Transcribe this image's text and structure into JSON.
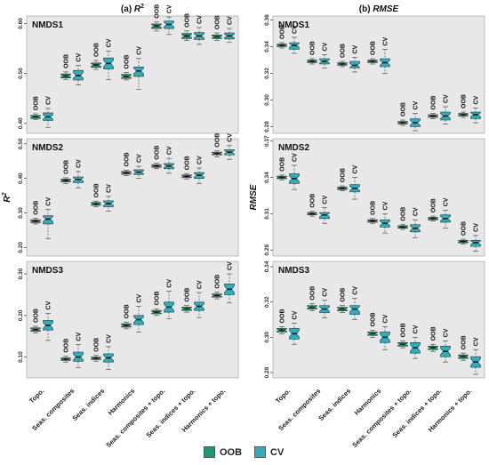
{
  "colors": {
    "oob": "#1a9a74",
    "cv": "#2ab0c0",
    "median": "#111111",
    "panel": "#e8e8e8",
    "whisker": "#555555"
  },
  "legend": {
    "oob": "OOB",
    "cv": "CV"
  },
  "chart_data": {
    "type": "box",
    "group_labels": [
      "OOB",
      "CV"
    ],
    "columns": [
      {
        "title_prefix": "(a)",
        "title_metric": "R",
        "title_sup": "2",
        "ylabel_main": "R",
        "ylabel_sup": "2"
      },
      {
        "title_prefix": "(b)",
        "title_metric": "RMSE",
        "title_sup": "",
        "ylabel_main": "RMSE",
        "ylabel_sup": ""
      }
    ],
    "categories": [
      "Topo.",
      "Seas. composites",
      "Seas. indices",
      "Harmonics",
      "Seas. composites + topo.",
      "Seas. indices + topo.",
      "Harmonics + topo."
    ],
    "panels": [
      {
        "id": "r2-nmds1",
        "col": 0,
        "row": 0,
        "label": "NMDS1",
        "ylim": [
          0.38,
          0.615
        ],
        "ticks": [
          0.4,
          0.5,
          0.6
        ],
        "tick_labels": [
          "0.40",
          "0.50",
          "0.60"
        ],
        "oob": [
          [
            0.408,
            0.41,
            0.413,
            0.416,
            0.419
          ],
          [
            0.488,
            0.491,
            0.495,
            0.499,
            0.503
          ],
          [
            0.508,
            0.512,
            0.517,
            0.521,
            0.526
          ],
          [
            0.487,
            0.49,
            0.494,
            0.498,
            0.502
          ],
          [
            0.585,
            0.59,
            0.595,
            0.599,
            0.603
          ],
          [
            0.566,
            0.57,
            0.575,
            0.58,
            0.585
          ],
          [
            0.566,
            0.57,
            0.573,
            0.577,
            0.581
          ]
        ],
        "cv": [
          [
            0.392,
            0.406,
            0.413,
            0.421,
            0.43
          ],
          [
            0.477,
            0.487,
            0.496,
            0.506,
            0.516
          ],
          [
            0.488,
            0.509,
            0.52,
            0.531,
            0.545
          ],
          [
            0.468,
            0.494,
            0.505,
            0.513,
            0.53
          ],
          [
            0.578,
            0.59,
            0.598,
            0.605,
            0.613
          ],
          [
            0.558,
            0.568,
            0.575,
            0.582,
            0.592
          ],
          [
            0.562,
            0.569,
            0.575,
            0.581,
            0.59
          ]
        ]
      },
      {
        "id": "r2-nmds2",
        "col": 0,
        "row": 1,
        "label": "NMDS2",
        "ylim": [
          0.175,
          0.515
        ],
        "ticks": [
          0.2,
          0.3,
          0.4,
          0.5
        ],
        "tick_labels": [
          "0.20",
          "0.30",
          "0.40",
          "0.50"
        ],
        "oob": [
          [
            0.268,
            0.272,
            0.276,
            0.28,
            0.284
          ],
          [
            0.385,
            0.39,
            0.394,
            0.398,
            0.402
          ],
          [
            0.318,
            0.322,
            0.326,
            0.33,
            0.334
          ],
          [
            0.408,
            0.412,
            0.416,
            0.42,
            0.424
          ],
          [
            0.428,
            0.432,
            0.436,
            0.44,
            0.444
          ],
          [
            0.398,
            0.402,
            0.406,
            0.41,
            0.414
          ],
          [
            0.462,
            0.468,
            0.472,
            0.476,
            0.48
          ]
        ],
        "cv": [
          [
            0.225,
            0.268,
            0.282,
            0.292,
            0.31
          ],
          [
            0.372,
            0.388,
            0.397,
            0.404,
            0.42
          ],
          [
            0.305,
            0.318,
            0.327,
            0.335,
            0.348
          ],
          [
            0.4,
            0.411,
            0.418,
            0.425,
            0.435
          ],
          [
            0.415,
            0.428,
            0.436,
            0.443,
            0.458
          ],
          [
            0.385,
            0.4,
            0.409,
            0.417,
            0.43
          ],
          [
            0.455,
            0.468,
            0.476,
            0.483,
            0.495
          ]
        ]
      },
      {
        "id": "r2-nmds3",
        "col": 0,
        "row": 2,
        "label": "NMDS3",
        "ylim": [
          0.05,
          0.33
        ],
        "ticks": [
          0.1,
          0.2,
          0.3
        ],
        "tick_labels": [
          "0.10",
          "0.20",
          "0.30"
        ],
        "oob": [
          [
            0.158,
            0.162,
            0.166,
            0.17,
            0.174
          ],
          [
            0.088,
            0.092,
            0.095,
            0.098,
            0.102
          ],
          [
            0.09,
            0.094,
            0.097,
            0.1,
            0.104
          ],
          [
            0.168,
            0.172,
            0.176,
            0.18,
            0.184
          ],
          [
            0.2,
            0.204,
            0.208,
            0.212,
            0.216
          ],
          [
            0.208,
            0.212,
            0.216,
            0.22,
            0.224
          ],
          [
            0.24,
            0.244,
            0.248,
            0.252,
            0.256
          ]
        ],
        "cv": [
          [
            0.14,
            0.165,
            0.176,
            0.188,
            0.205
          ],
          [
            0.075,
            0.09,
            0.1,
            0.112,
            0.13
          ],
          [
            0.07,
            0.088,
            0.098,
            0.108,
            0.125
          ],
          [
            0.16,
            0.178,
            0.19,
            0.2,
            0.222
          ],
          [
            0.192,
            0.208,
            0.22,
            0.232,
            0.258
          ],
          [
            0.195,
            0.212,
            0.222,
            0.232,
            0.255
          ],
          [
            0.23,
            0.25,
            0.263,
            0.276,
            0.3
          ]
        ]
      },
      {
        "id": "rmse-nmds1",
        "col": 1,
        "row": 0,
        "label": "NMDS1",
        "ylim": [
          0.275,
          0.363
        ],
        "ticks": [
          0.28,
          0.3,
          0.32,
          0.34,
          0.36
        ],
        "tick_labels": [
          "0.28",
          "0.30",
          "0.32",
          "0.34",
          "0.36"
        ],
        "oob": [
          [
            0.339,
            0.34,
            0.341,
            0.342,
            0.343
          ],
          [
            0.327,
            0.328,
            0.329,
            0.33,
            0.331
          ],
          [
            0.325,
            0.326,
            0.327,
            0.328,
            0.329
          ],
          [
            0.327,
            0.328,
            0.329,
            0.33,
            0.331
          ],
          [
            0.281,
            0.282,
            0.283,
            0.284,
            0.285
          ],
          [
            0.286,
            0.287,
            0.288,
            0.289,
            0.29
          ],
          [
            0.287,
            0.288,
            0.289,
            0.29,
            0.291
          ]
        ],
        "cv": [
          [
            0.335,
            0.338,
            0.341,
            0.343,
            0.347
          ],
          [
            0.324,
            0.327,
            0.329,
            0.331,
            0.334
          ],
          [
            0.321,
            0.324,
            0.326,
            0.329,
            0.332
          ],
          [
            0.32,
            0.325,
            0.328,
            0.331,
            0.338
          ],
          [
            0.277,
            0.28,
            0.283,
            0.286,
            0.29
          ],
          [
            0.282,
            0.285,
            0.288,
            0.291,
            0.295
          ],
          [
            0.283,
            0.286,
            0.289,
            0.291,
            0.294
          ]
        ]
      },
      {
        "id": "rmse-nmds2",
        "col": 1,
        "row": 1,
        "label": "NMDS2",
        "ylim": [
          0.275,
          0.372
        ],
        "ticks": [
          0.28,
          0.31,
          0.34,
          0.37
        ],
        "tick_labels": [
          "0.28",
          "0.31",
          "0.34",
          "0.37"
        ],
        "oob": [
          [
            0.338,
            0.339,
            0.34,
            0.341,
            0.342
          ],
          [
            0.308,
            0.309,
            0.31,
            0.311,
            0.312
          ],
          [
            0.329,
            0.33,
            0.331,
            0.332,
            0.333
          ],
          [
            0.302,
            0.303,
            0.304,
            0.305,
            0.306
          ],
          [
            0.297,
            0.298,
            0.299,
            0.3,
            0.301
          ],
          [
            0.304,
            0.305,
            0.306,
            0.307,
            0.308
          ],
          [
            0.285,
            0.286,
            0.287,
            0.288,
            0.289
          ]
        ],
        "cv": [
          [
            0.33,
            0.335,
            0.339,
            0.343,
            0.35
          ],
          [
            0.302,
            0.306,
            0.309,
            0.311,
            0.315
          ],
          [
            0.322,
            0.328,
            0.331,
            0.334,
            0.34
          ],
          [
            0.294,
            0.299,
            0.302,
            0.305,
            0.31
          ],
          [
            0.29,
            0.295,
            0.298,
            0.301,
            0.305
          ],
          [
            0.298,
            0.303,
            0.306,
            0.309,
            0.313
          ],
          [
            0.279,
            0.283,
            0.286,
            0.288,
            0.292
          ]
        ]
      },
      {
        "id": "rmse-nmds3",
        "col": 1,
        "row": 2,
        "label": "NMDS3",
        "ylim": [
          0.277,
          0.343
        ],
        "ticks": [
          0.28,
          0.3,
          0.32,
          0.34
        ],
        "tick_labels": [
          "0.28",
          "0.30",
          "0.32",
          "0.34"
        ],
        "oob": [
          [
            0.302,
            0.303,
            0.304,
            0.305,
            0.306
          ],
          [
            0.315,
            0.316,
            0.317,
            0.318,
            0.319
          ],
          [
            0.314,
            0.315,
            0.316,
            0.317,
            0.318
          ],
          [
            0.3,
            0.301,
            0.302,
            0.303,
            0.304
          ],
          [
            0.294,
            0.295,
            0.296,
            0.297,
            0.298
          ],
          [
            0.292,
            0.293,
            0.294,
            0.295,
            0.296
          ],
          [
            0.287,
            0.288,
            0.289,
            0.29,
            0.291
          ]
        ],
        "cv": [
          [
            0.296,
            0.299,
            0.302,
            0.305,
            0.308
          ],
          [
            0.311,
            0.314,
            0.316,
            0.318,
            0.321
          ],
          [
            0.31,
            0.313,
            0.316,
            0.318,
            0.322
          ],
          [
            0.293,
            0.297,
            0.3,
            0.303,
            0.306
          ],
          [
            0.288,
            0.291,
            0.294,
            0.297,
            0.3
          ],
          [
            0.286,
            0.289,
            0.292,
            0.295,
            0.298
          ],
          [
            0.279,
            0.283,
            0.286,
            0.289,
            0.293
          ]
        ]
      }
    ]
  }
}
